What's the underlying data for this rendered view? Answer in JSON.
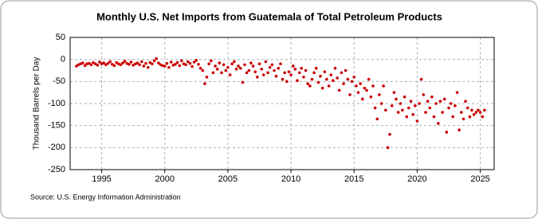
{
  "chart_data": {
    "type": "scatter",
    "title": "Monthly U.S. Net Imports from Guatemala of Total Petroleum Products",
    "y_label": "Thousand Barrels per Day",
    "source": "Source: U.S. Energy Information Administration",
    "color": "#cc0000",
    "grid": true,
    "xlim": [
      1992.5,
      2026.1
    ],
    "xticks": [
      1995,
      2000,
      2005,
      2010,
      2015,
      2020,
      2025
    ],
    "ylim": [
      -250,
      50
    ],
    "yticks": [
      50,
      0,
      -50,
      -100,
      -150,
      -200,
      -250
    ],
    "x": [
      1993.0,
      1993.17,
      1993.33,
      1993.5,
      1993.67,
      1993.83,
      1994.0,
      1994.17,
      1994.33,
      1994.5,
      1994.67,
      1994.83,
      1995.0,
      1995.17,
      1995.33,
      1995.5,
      1995.67,
      1995.83,
      1996.0,
      1996.17,
      1996.33,
      1996.5,
      1996.67,
      1996.83,
      1997.0,
      1997.17,
      1997.33,
      1997.5,
      1997.67,
      1997.83,
      1998.0,
      1998.17,
      1998.33,
      1998.5,
      1998.67,
      1998.83,
      1999.0,
      1999.17,
      1999.33,
      1999.5,
      1999.67,
      1999.83,
      2000.0,
      2000.17,
      2000.33,
      2000.5,
      2000.67,
      2000.83,
      2001.0,
      2001.17,
      2001.33,
      2001.5,
      2001.67,
      2001.83,
      2002.0,
      2002.17,
      2002.33,
      2002.5,
      2002.67,
      2002.83,
      2003.0,
      2003.17,
      2003.33,
      2003.5,
      2003.67,
      2003.83,
      2004.0,
      2004.17,
      2004.33,
      2004.5,
      2004.67,
      2004.83,
      2005.0,
      2005.17,
      2005.33,
      2005.5,
      2005.67,
      2005.83,
      2006.0,
      2006.17,
      2006.33,
      2006.5,
      2006.67,
      2006.83,
      2007.0,
      2007.17,
      2007.33,
      2007.5,
      2007.67,
      2007.83,
      2008.0,
      2008.17,
      2008.33,
      2008.5,
      2008.67,
      2008.83,
      2009.0,
      2009.17,
      2009.33,
      2009.5,
      2009.67,
      2009.83,
      2010.0,
      2010.17,
      2010.33,
      2010.5,
      2010.67,
      2010.83,
      2011.0,
      2011.17,
      2011.33,
      2011.5,
      2011.67,
      2011.83,
      2012.0,
      2012.17,
      2012.33,
      2012.5,
      2012.67,
      2012.83,
      2013.0,
      2013.17,
      2013.33,
      2013.5,
      2013.67,
      2013.83,
      2014.0,
      2014.17,
      2014.33,
      2014.5,
      2014.67,
      2014.83,
      2015.0,
      2015.17,
      2015.33,
      2015.5,
      2015.67,
      2015.83,
      2016.0,
      2016.17,
      2016.33,
      2016.5,
      2016.67,
      2016.83,
      2017.0,
      2017.17,
      2017.33,
      2017.5,
      2017.67,
      2017.83,
      2018.0,
      2018.17,
      2018.33,
      2018.5,
      2018.67,
      2018.83,
      2019.0,
      2019.17,
      2019.33,
      2019.5,
      2019.67,
      2019.83,
      2020.0,
      2020.17,
      2020.33,
      2020.5,
      2020.67,
      2020.83,
      2021.0,
      2021.17,
      2021.33,
      2021.5,
      2021.67,
      2021.83,
      2022.0,
      2022.17,
      2022.33,
      2022.5,
      2022.67,
      2022.83,
      2023.0,
      2023.17,
      2023.33,
      2023.5,
      2023.67,
      2023.83,
      2024.0,
      2024.17,
      2024.33,
      2024.5,
      2024.67,
      2024.83,
      2025.0,
      2025.17,
      2025.33
    ],
    "values": [
      -15,
      -12,
      -10,
      -8,
      -14,
      -10,
      -9,
      -12,
      -7,
      -10,
      -13,
      -6,
      -10,
      -8,
      -12,
      -9,
      -5,
      -11,
      -14,
      -7,
      -10,
      -12,
      -8,
      -4,
      -9,
      -11,
      -6,
      -13,
      -10,
      -8,
      -12,
      -5,
      -15,
      -9,
      -18,
      -7,
      -10,
      -3,
      2,
      -8,
      -12,
      -14,
      -15,
      -9,
      -18,
      -6,
      -13,
      -11,
      -7,
      -14,
      -3,
      -10,
      -12,
      -5,
      -9,
      -16,
      -6,
      -2,
      -11,
      -20,
      -25,
      -55,
      -40,
      -10,
      -3,
      -30,
      -15,
      -22,
      -8,
      -30,
      -12,
      -25,
      -18,
      -35,
      -10,
      -5,
      -22,
      -15,
      -20,
      -52,
      -12,
      -30,
      -25,
      -8,
      -15,
      -28,
      -40,
      -10,
      -22,
      -35,
      -5,
      -30,
      -18,
      -12,
      -25,
      -38,
      -20,
      -10,
      -45,
      -30,
      -50,
      -28,
      -35,
      -15,
      -22,
      -48,
      -30,
      -20,
      -40,
      -25,
      -55,
      -60,
      -45,
      -30,
      -20,
      -52,
      -38,
      -65,
      -28,
      -45,
      -60,
      -35,
      -48,
      -20,
      -42,
      -70,
      -30,
      -55,
      -25,
      -45,
      -80,
      -50,
      -40,
      -60,
      -75,
      -55,
      -90,
      -65,
      -70,
      -45,
      -85,
      -60,
      -110,
      -135,
      -80,
      -100,
      -60,
      -115,
      -200,
      -170,
      -105,
      -75,
      -90,
      -120,
      -100,
      -115,
      -85,
      -130,
      -110,
      -95,
      -125,
      -105,
      -140,
      -100,
      -45,
      -80,
      -120,
      -95,
      -110,
      -85,
      -130,
      -100,
      -145,
      -95,
      -120,
      -90,
      -165,
      -110,
      -100,
      -130,
      -105,
      -75,
      -160,
      -120,
      -135,
      -95,
      -110,
      -130,
      -115,
      -125,
      -120,
      -115,
      -120,
      -130,
      -115
    ]
  }
}
